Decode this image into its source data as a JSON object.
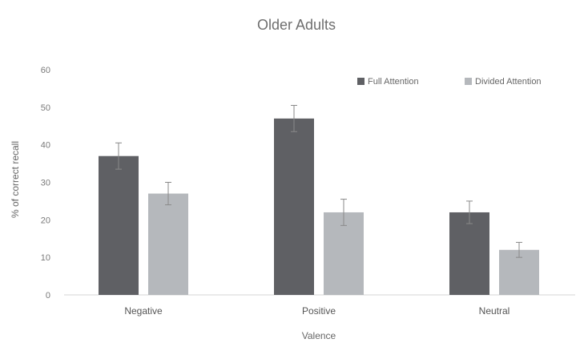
{
  "chart_data": {
    "type": "bar",
    "title": "Older Adults",
    "xlabel": "Valence",
    "ylabel": "% of correct recall",
    "categories": [
      "Negative",
      "Positive",
      "Neutral"
    ],
    "series": [
      {
        "name": "Full Attention",
        "values": [
          37,
          47,
          22
        ],
        "errors": [
          3.5,
          3.5,
          3
        ],
        "color": "#5f6064"
      },
      {
        "name": "Divided Attention",
        "values": [
          27,
          22,
          12
        ],
        "errors": [
          3,
          3.5,
          2
        ],
        "color": "#b5b8bc"
      }
    ],
    "ylim": [
      0,
      60
    ],
    "yticks": [
      0,
      10,
      20,
      30,
      40,
      50,
      60
    ],
    "grid": false,
    "legend": "top-right"
  }
}
